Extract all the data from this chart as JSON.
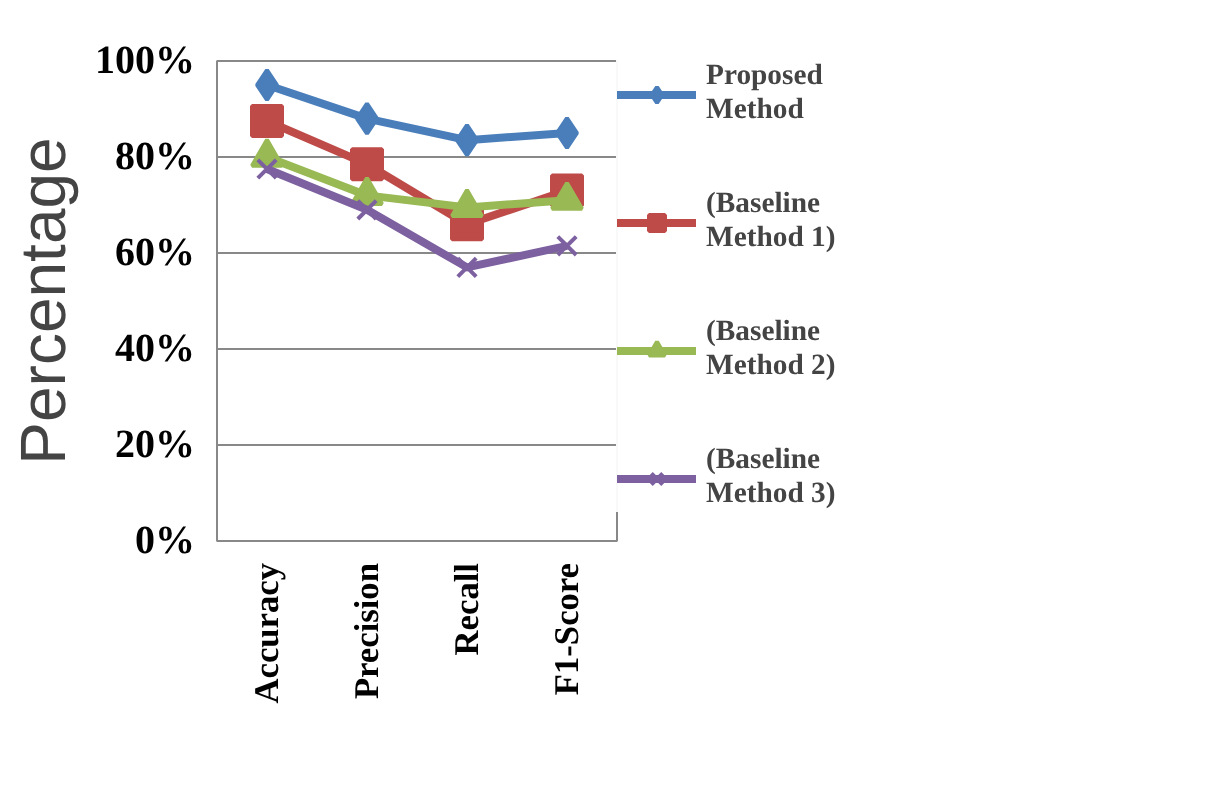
{
  "chart_data": {
    "type": "line",
    "ylabel": "Percentage",
    "categories": [
      "Accuracy",
      "Precision",
      "Recall",
      "F1-Score"
    ],
    "series": [
      {
        "name": "Proposed Method",
        "color": "#4a7ebb",
        "marker": "diamond",
        "values": [
          95,
          88,
          83.5,
          85
        ]
      },
      {
        "name": "(Baseline Method 1)",
        "color": "#be4b48",
        "marker": "square",
        "values": [
          87.5,
          78.5,
          66,
          73
        ]
      },
      {
        "name": "(Baseline Method 2)",
        "color": "#98b954",
        "marker": "triangle",
        "values": [
          80,
          72,
          69.5,
          71
        ]
      },
      {
        "name": "(Baseline Method 3)",
        "color": "#7d60a0",
        "marker": "cross",
        "values": [
          77.5,
          69,
          57,
          61.5
        ]
      }
    ],
    "ylim": [
      0,
      100
    ],
    "yticks": [
      {
        "value": 0,
        "label": "0%"
      },
      {
        "value": 20,
        "label": "20%"
      },
      {
        "value": 40,
        "label": "40%"
      },
      {
        "value": 60,
        "label": "60%"
      },
      {
        "value": 80,
        "label": "80%"
      },
      {
        "value": 100,
        "label": "100%"
      }
    ],
    "grid": "y",
    "legend": "right"
  }
}
